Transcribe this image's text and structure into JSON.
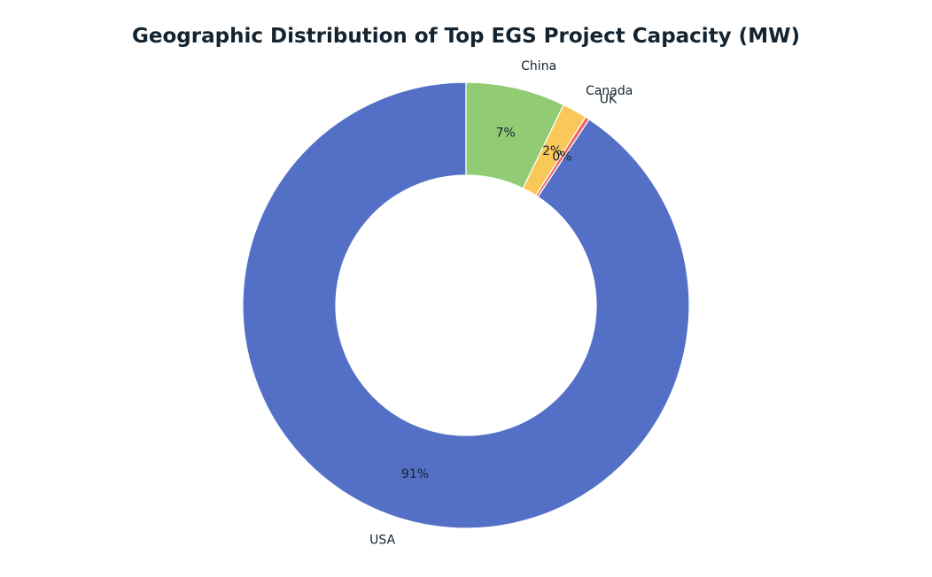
{
  "chart_data": {
    "type": "pie",
    "variant": "donut",
    "title": "Geographic Distribution of Top EGS Project Capacity (MW)",
    "start_angle_deg": 90,
    "direction": "counterclockwise",
    "slices": [
      {
        "label": "USA",
        "share": 0.907,
        "pct_label": "91%",
        "color": "#5470c6"
      },
      {
        "label": "UK",
        "share": 0.003,
        "pct_label": "0%",
        "color": "#ee6666"
      },
      {
        "label": "Canada",
        "share": 0.018,
        "pct_label": "2%",
        "color": "#fac858"
      },
      {
        "label": "China",
        "share": 0.072,
        "pct_label": "7%",
        "color": "#91cc75"
      }
    ]
  }
}
